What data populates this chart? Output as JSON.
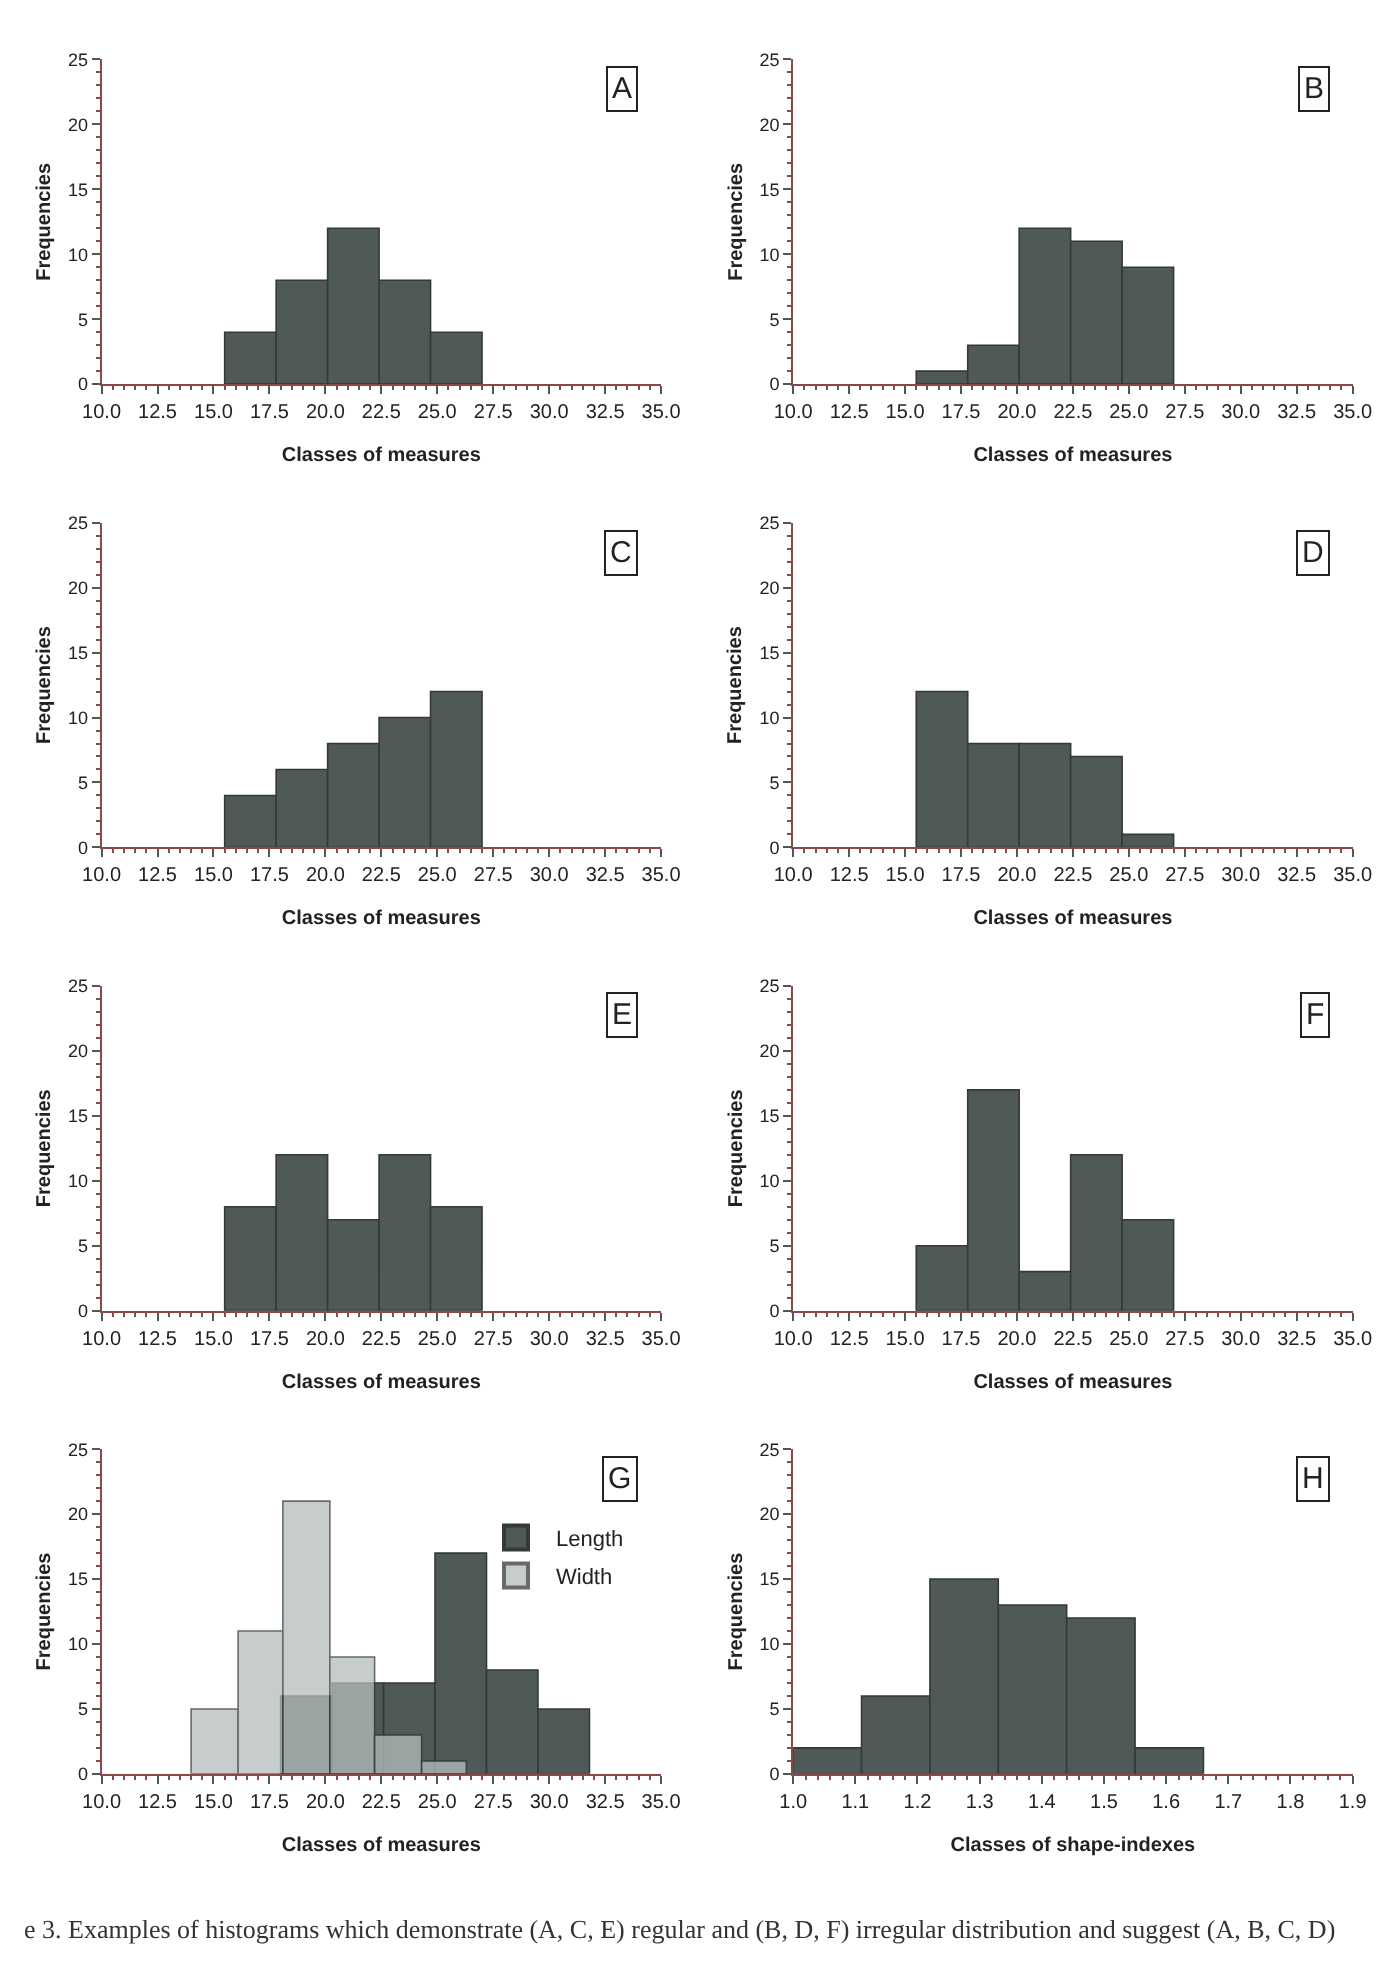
{
  "chart_data": [
    {
      "type": "histogram",
      "xlabel": "Classes of measures",
      "ylabel": "Frequencies",
      "annotations": [
        "A"
      ],
      "bins": [
        15.5,
        17.8,
        20.1,
        22.4,
        24.7,
        27.0
      ],
      "values": [
        4,
        8,
        12,
        8,
        4
      ],
      "color": "#4f5957",
      "xlim": [
        10,
        35
      ],
      "xticks": [
        {
          "value": 10,
          "label": "10.0"
        },
        12.5,
        {
          "value": 15,
          "label": "15.0"
        },
        17.5,
        {
          "value": 20,
          "label": "20.0"
        },
        22.5,
        {
          "value": 25,
          "label": "25.0"
        },
        27.5,
        {
          "value": 30,
          "label": "30.0"
        },
        32.5,
        {
          "value": 35,
          "label": "35.0"
        }
      ],
      "ylim": [
        0,
        25
      ],
      "yticks": [
        0,
        5,
        10,
        15,
        20,
        25
      ],
      "grid": false
    },
    {
      "type": "histogram",
      "xlabel": "Classes of measures",
      "ylabel": "Frequencies",
      "annotations": [
        "B"
      ],
      "bins": [
        15.5,
        17.8,
        20.1,
        22.4,
        24.7,
        27.0
      ],
      "values": [
        1,
        3,
        12,
        11,
        9
      ],
      "color": "#4f5957",
      "xlim": [
        10,
        35
      ],
      "xticks": [
        {
          "value": 10,
          "label": "10.0"
        },
        12.5,
        {
          "value": 15,
          "label": "15.0"
        },
        17.5,
        {
          "value": 20,
          "label": "20.0"
        },
        22.5,
        {
          "value": 25,
          "label": "25.0"
        },
        27.5,
        {
          "value": 30,
          "label": "30.0"
        },
        32.5,
        {
          "value": 35,
          "label": "35.0"
        }
      ],
      "ylim": [
        0,
        25
      ],
      "yticks": [
        0,
        5,
        10,
        15,
        20,
        25
      ],
      "grid": false
    },
    {
      "type": "histogram",
      "xlabel": "Classes of measures",
      "ylabel": "Frequencies",
      "annotations": [
        "C"
      ],
      "bins": [
        15.5,
        17.8,
        20.1,
        22.4,
        24.7,
        27.0
      ],
      "values": [
        4,
        6,
        8,
        10,
        12
      ],
      "color": "#4f5957",
      "xlim": [
        10,
        35
      ],
      "xticks": [
        {
          "value": 10,
          "label": "10.0"
        },
        12.5,
        {
          "value": 15,
          "label": "15.0"
        },
        17.5,
        {
          "value": 20,
          "label": "20.0"
        },
        22.5,
        {
          "value": 25,
          "label": "25.0"
        },
        27.5,
        {
          "value": 30,
          "label": "30.0"
        },
        32.5,
        {
          "value": 35,
          "label": "35.0"
        }
      ],
      "ylim": [
        0,
        25
      ],
      "yticks": [
        0,
        5,
        10,
        15,
        20,
        25
      ],
      "grid": false
    },
    {
      "type": "histogram",
      "xlabel": "Classes of measures",
      "ylabel": "Frequencies",
      "annotations": [
        "D"
      ],
      "bins": [
        15.5,
        17.8,
        20.1,
        22.4,
        24.7,
        27.0
      ],
      "values": [
        12,
        8,
        8,
        7,
        1
      ],
      "color": "#4f5957",
      "xlim": [
        10,
        35
      ],
      "xticks": [
        {
          "value": 10,
          "label": "10.0"
        },
        12.5,
        {
          "value": 15,
          "label": "15.0"
        },
        17.5,
        {
          "value": 20,
          "label": "20.0"
        },
        22.5,
        {
          "value": 25,
          "label": "25.0"
        },
        27.5,
        {
          "value": 30,
          "label": "30.0"
        },
        32.5,
        {
          "value": 35,
          "label": "35.0"
        }
      ],
      "ylim": [
        0,
        25
      ],
      "yticks": [
        0,
        5,
        10,
        15,
        20,
        25
      ],
      "grid": false
    },
    {
      "type": "histogram",
      "xlabel": "Classes of measures",
      "ylabel": "Frequencies",
      "annotations": [
        "E"
      ],
      "bins": [
        15.5,
        17.8,
        20.1,
        22.4,
        24.7,
        27.0
      ],
      "values": [
        8,
        12,
        7,
        12,
        8
      ],
      "color": "#4f5957",
      "xlim": [
        10,
        35
      ],
      "xticks": [
        {
          "value": 10,
          "label": "10.0"
        },
        12.5,
        {
          "value": 15,
          "label": "15.0"
        },
        17.5,
        {
          "value": 20,
          "label": "20.0"
        },
        22.5,
        {
          "value": 25,
          "label": "25.0"
        },
        27.5,
        {
          "value": 30,
          "label": "30.0"
        },
        32.5,
        {
          "value": 35,
          "label": "35.0"
        }
      ],
      "ylim": [
        0,
        25
      ],
      "yticks": [
        0,
        5,
        10,
        15,
        20,
        25
      ],
      "grid": false
    },
    {
      "type": "histogram",
      "xlabel": "Classes of measures",
      "ylabel": "Frequencies",
      "annotations": [
        "F"
      ],
      "bins": [
        15.5,
        17.8,
        20.1,
        22.4,
        24.7,
        27.0
      ],
      "values": [
        5,
        17,
        3,
        12,
        7
      ],
      "color": "#4f5957",
      "xlim": [
        10,
        35
      ],
      "xticks": [
        {
          "value": 10,
          "label": "10.0"
        },
        12.5,
        {
          "value": 15,
          "label": "15.0"
        },
        17.5,
        {
          "value": 20,
          "label": "20.0"
        },
        22.5,
        {
          "value": 25,
          "label": "25.0"
        },
        27.5,
        {
          "value": 30,
          "label": "30.0"
        },
        32.5,
        {
          "value": 35,
          "label": "35.0"
        }
      ],
      "ylim": [
        0,
        25
      ],
      "yticks": [
        0,
        5,
        10,
        15,
        20,
        25
      ],
      "grid": false
    },
    {
      "type": "histogram",
      "xlabel": "Classes of measures",
      "ylabel": "Frequencies",
      "annotations": [
        "G"
      ],
      "bins": [
        18.0,
        20.3,
        22.6,
        24.9,
        27.2,
        29.5,
        31.8
      ],
      "series": [
        {
          "name": "Length",
          "color": "#4f5957",
          "values": [
            6,
            7,
            7,
            17,
            8,
            5
          ]
        },
        {
          "name": "Width",
          "color": "#b4bdbb",
          "bins": [
            14.0,
            16.1,
            18.1,
            20.2,
            22.2,
            24.3,
            26.3
          ],
          "values": [
            5,
            11,
            21,
            9,
            3,
            1
          ]
        }
      ],
      "legend": "top right",
      "xlim": [
        10,
        35
      ],
      "xticks": [
        {
          "value": 10,
          "label": "10.0"
        },
        12.5,
        {
          "value": 15,
          "label": "15.0"
        },
        17.5,
        {
          "value": 20,
          "label": "20.0"
        },
        22.5,
        {
          "value": 25,
          "label": "25.0"
        },
        27.5,
        {
          "value": 30,
          "label": "30.0"
        },
        32.5,
        {
          "value": 35,
          "label": "35.0"
        }
      ],
      "ylim": [
        0,
        25
      ],
      "yticks": [
        0,
        5,
        10,
        15,
        20,
        25
      ],
      "grid": false
    },
    {
      "type": "histogram",
      "xlabel": "Classes of shape-indexes",
      "ylabel": "Frequencies",
      "annotations": [
        "H",
        "e 3. Examples of histograms which demonstrate (A, C, E) regular and (B, D, F) irregular distribution and suggest (A, B, C, D)"
      ],
      "bins": [
        1.0,
        1.11,
        1.22,
        1.33,
        1.44,
        1.55,
        1.66
      ],
      "values": [
        2,
        6,
        15,
        13,
        12,
        2
      ],
      "color": "#4f5957",
      "xlim": [
        1.0,
        1.9
      ],
      "xticks": [
        {
          "value": 1,
          "label": "1.0"
        },
        1.1,
        1.2,
        1.3,
        1.4,
        1.5,
        1.6,
        1.7,
        1.8,
        1.9
      ],
      "ylim": [
        0,
        25
      ],
      "yticks": [
        0,
        5,
        10,
        15,
        20,
        25
      ],
      "grid": false
    }
  ]
}
